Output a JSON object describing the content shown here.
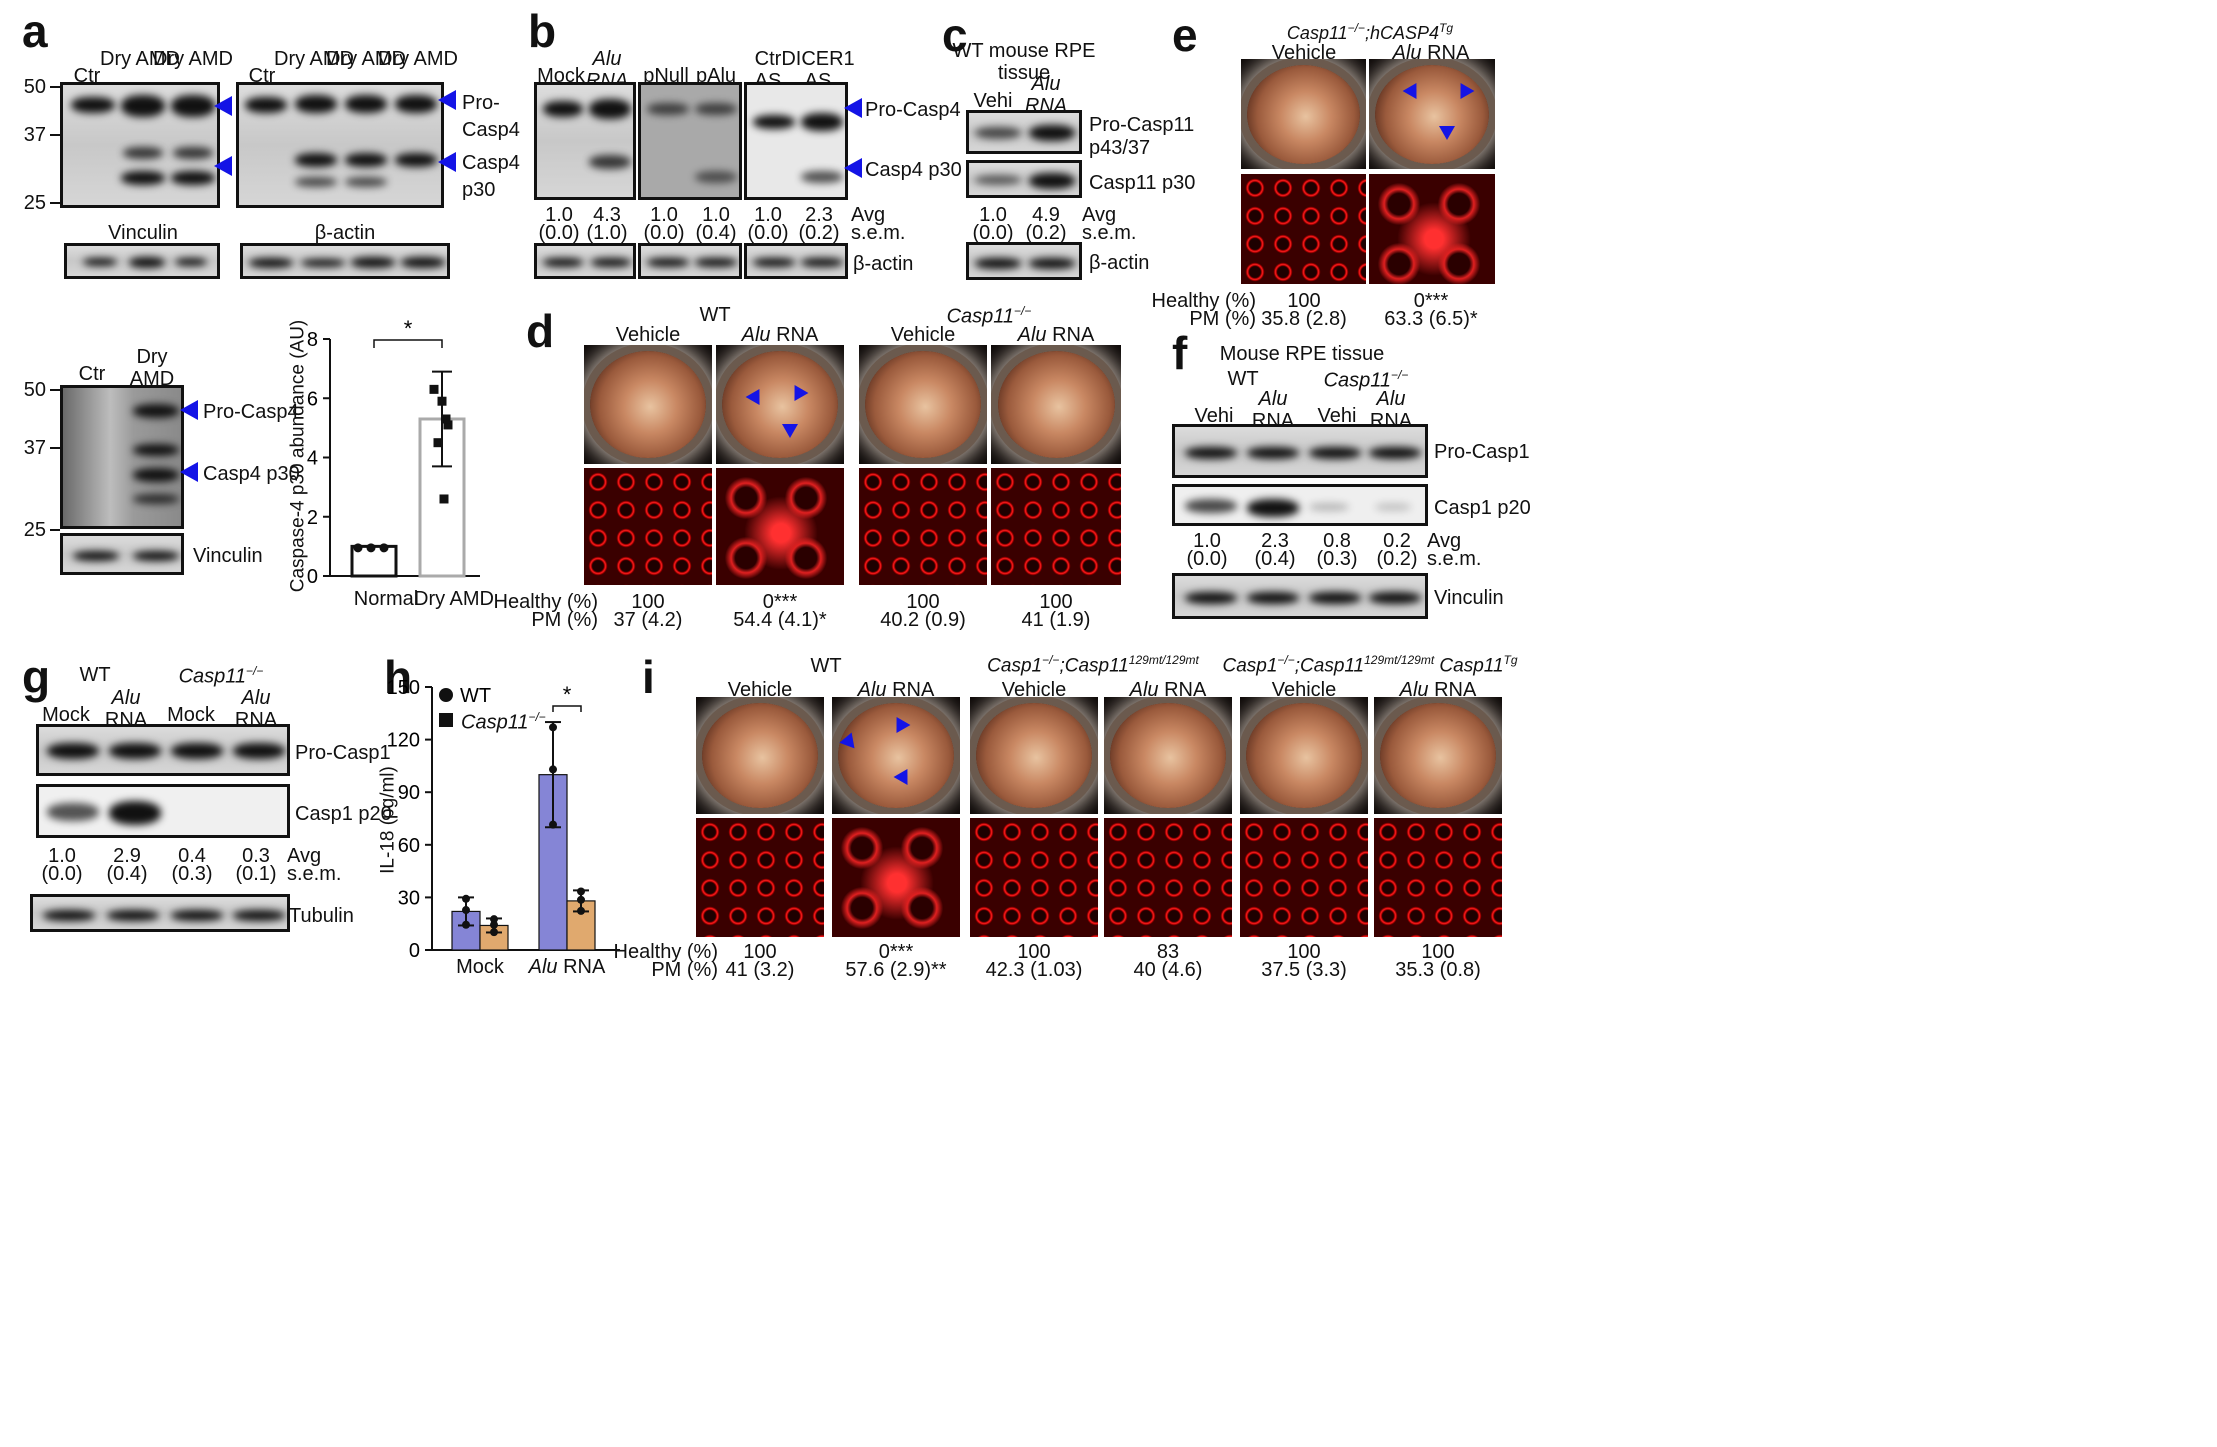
{
  "a": {
    "label": "a",
    "top_lanes": [
      "Ctr",
      "Dry\nAMD",
      "Dry\nAMD"
    ],
    "top_lanes2": [
      "Ctr",
      "Dry\nAMD",
      "Dry\nAMD",
      "Dry\nAMD"
    ],
    "mw": [
      "50",
      "37",
      "25"
    ],
    "right_top": "Pro-\nCasp4",
    "right_bottom": "Casp4\np30",
    "load1": "Vinculin",
    "load2": "β-actin",
    "lanes3": [
      "Ctr",
      "Dry\nAMD"
    ],
    "mw3": [
      "50",
      "37",
      "25"
    ],
    "right3_top": "Pro-Casp4",
    "right3_bottom": "Casp4 p30",
    "load3": "Vinculin"
  },
  "chart_data": {
    "type": "bar",
    "categories": [
      "Normal",
      "Dry AMD"
    ],
    "values": [
      1.0,
      5.3
    ],
    "points": [
      [
        0.95,
        0.95,
        0.95
      ],
      [
        5.9,
        6.3,
        5.1,
        4.5,
        5.3,
        2.6
      ]
    ],
    "errors": [
      0.0,
      1.6
    ],
    "ylabel": "Caspase-4 p30 abundance (AU)",
    "ylim": [
      0,
      8
    ],
    "yticks": [
      "0",
      "2",
      "4",
      "6",
      "8"
    ],
    "sig": "*"
  },
  "b": {
    "label": "b",
    "lanes": [
      "Mock",
      "Alu\nRNA",
      "pNull",
      "pAlu",
      "Ctr\nAS",
      "DICER1\nAS"
    ],
    "right_top": "Pro-Casp4",
    "right_bottom": "Casp4 p30",
    "avg": [
      "1.0",
      "4.3",
      "1.0",
      "1.0",
      "1.0",
      "2.3"
    ],
    "sem": [
      "(0.0)",
      "(1.0)",
      "(0.0)",
      "(0.4)",
      "(0.0)",
      "(0.2)"
    ],
    "avg_label": "Avg",
    "sem_label": "s.e.m.",
    "load": "β-actin"
  },
  "c": {
    "label": "c",
    "title": "WT mouse RPE\ntissue",
    "lanes": [
      "Vehi",
      "Alu\nRNA"
    ],
    "right_top": "Pro-Casp11\np43/37",
    "right_bottom": "Casp11 p30",
    "avg": [
      "1.0",
      "4.9"
    ],
    "sem": [
      "(0.0)",
      "(0.2)"
    ],
    "avg_label": "Avg",
    "sem_label": "s.e.m.",
    "load": "β-actin"
  },
  "e": {
    "label": "e",
    "genotype": "Casp11−/−;hCASP4Tg",
    "cols": [
      "Vehicle",
      "Alu RNA"
    ],
    "healthy_label": "Healthy (%)",
    "pm_label": "PM (%)",
    "healthy": [
      "100",
      "0***"
    ],
    "pm": [
      "35.8 (2.8)",
      "63.3 (6.5)*"
    ]
  },
  "d": {
    "label": "d",
    "groups": [
      "WT",
      "Casp11−/−"
    ],
    "cols": [
      "Vehicle",
      "Alu RNA",
      "Vehicle",
      "Alu RNA"
    ],
    "healthy_label": "Healthy (%)",
    "pm_label": "PM (%)",
    "healthy": [
      "100",
      "0***",
      "100",
      "100"
    ],
    "pm": [
      "37 (4.2)",
      "54.4 (4.1)*",
      "40.2 (0.9)",
      "41 (1.9)"
    ]
  },
  "f": {
    "label": "f",
    "title": "Mouse RPE tissue",
    "groups": [
      "WT",
      "Casp11−/−"
    ],
    "lanes": [
      "Vehi",
      "Alu\nRNA",
      "Vehi",
      "Alu\nRNA"
    ],
    "right_top": "Pro-Casp1",
    "right_bottom": "Casp1 p20",
    "avg": [
      "1.0",
      "2.3",
      "0.8",
      "0.2"
    ],
    "sem": [
      "(0.0)",
      "(0.4)",
      "(0.3)",
      "(0.2)"
    ],
    "avg_label": "Avg",
    "sem_label": "s.e.m.",
    "load": "Vinculin"
  },
  "g": {
    "label": "g",
    "groups": [
      "WT",
      "Casp11−/−"
    ],
    "lanes": [
      "Mock",
      "Alu\nRNA",
      "Mock",
      "Alu\nRNA"
    ],
    "right_top": "Pro-Casp1",
    "right_bottom": "Casp1 p20",
    "avg": [
      "1.0",
      "2.9",
      "0.4",
      "0.3"
    ],
    "sem": [
      "(0.0)",
      "(0.4)",
      "(0.3)",
      "(0.1)"
    ],
    "avg_label": "Avg",
    "sem_label": "s.e.m.",
    "load": "Tubulin"
  },
  "h": {
    "label": "h",
    "chart_data": {
      "type": "bar",
      "categories": [
        "Mock",
        "Alu RNA"
      ],
      "series": [
        {
          "name": "WT",
          "values": [
            22,
            100
          ],
          "errors": [
            8,
            30
          ],
          "color": "#8585d6"
        },
        {
          "name": "Casp11−/−",
          "values": [
            14,
            28
          ],
          "errors": [
            4,
            6
          ],
          "color": "#e0a96e"
        }
      ],
      "ylabel": "IL-18 (pg/ml)",
      "ylim": [
        0,
        150
      ],
      "yticks": [
        "0",
        "30",
        "60",
        "90",
        "120",
        "150"
      ],
      "sig": "*"
    }
  },
  "i": {
    "label": "i",
    "groups": [
      "WT",
      "Casp1−/−;Casp11129mt/129mt",
      "Casp1−/−;Casp11129mt/129mt Casp11Tg"
    ],
    "cols": [
      "Vehicle",
      "Alu RNA",
      "Vehicle",
      "Alu RNA",
      "Vehicle",
      "Alu RNA"
    ],
    "healthy_label": "Healthy (%)",
    "pm_label": "PM (%)",
    "healthy": [
      "100",
      "0***",
      "100",
      "83",
      "100",
      "100"
    ],
    "pm": [
      "41 (3.2)",
      "57.6 (2.9)**",
      "42.3 (1.03)",
      "40 (4.6)",
      "37.5 (3.3)",
      "35.3 (0.8)"
    ]
  }
}
